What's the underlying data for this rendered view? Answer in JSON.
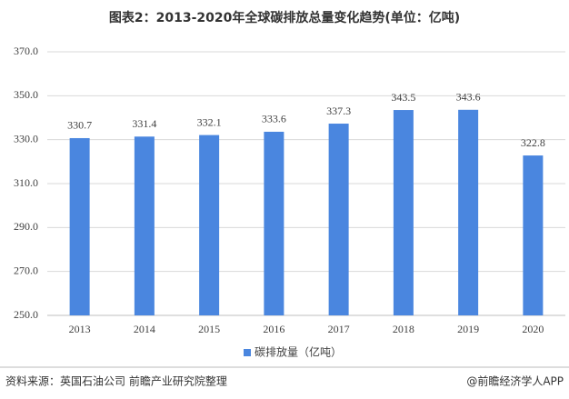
{
  "chart_data": {
    "type": "bar",
    "title": "图表2：2013-2020年全球碳排放总量变化趋势(单位：亿吨)",
    "categories": [
      "2013",
      "2014",
      "2015",
      "2016",
      "2017",
      "2018",
      "2019",
      "2020"
    ],
    "series": [
      {
        "name": "碳排放量（亿吨）",
        "color": "#4a86df",
        "values": [
          330.7,
          331.4,
          332.1,
          333.6,
          337.3,
          343.5,
          343.6,
          322.8
        ]
      }
    ],
    "ylim": [
      250,
      370
    ],
    "yticks": [
      {
        "value": 250,
        "label": "250.0"
      },
      {
        "value": 270,
        "label": "270.0"
      },
      {
        "value": 290,
        "label": "290.0"
      },
      {
        "value": 310,
        "label": "310.0"
      },
      {
        "value": 330,
        "label": "330.0"
      },
      {
        "value": 350,
        "label": "350.0"
      },
      {
        "value": 370,
        "label": "370.0"
      }
    ],
    "grid": true,
    "legend": "bottom",
    "source": "资料来源：英国石油公司 前瞻产业研究院整理",
    "credit": "@前瞻经济学人APP"
  }
}
